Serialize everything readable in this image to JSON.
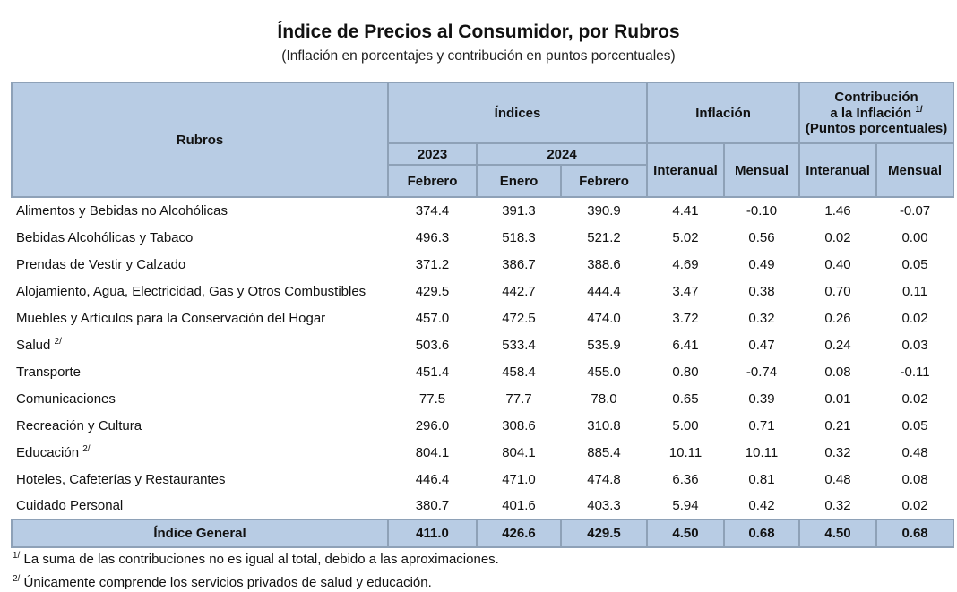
{
  "title": "Índice de Precios al Consumidor, por Rubros",
  "subtitle": "(Inflación en porcentajes y contribución en puntos porcentuales)",
  "header": {
    "rubros": "Rubros",
    "indices": "Índices",
    "inflacion": "Inflación",
    "contribucion_line1": "Contribución",
    "contribucion_line2": "a la Inflación",
    "contribucion_sup": "1/",
    "contribucion_line3": "(Puntos porcentuales)",
    "year_2023": "2023",
    "year_2024": "2024",
    "febrero_2023": "Febrero",
    "enero_2024": "Enero",
    "febrero_2024": "Febrero",
    "interanual": "Interanual",
    "mensual": "Mensual",
    "contrib_interanual": "Interanual",
    "contrib_mensual": "Mensual"
  },
  "rows": [
    {
      "rubro": "Alimentos y Bebidas no Alcohólicas",
      "sup": "",
      "feb23": "374.4",
      "ene24": "391.3",
      "feb24": "390.9",
      "inf_inter": "4.41",
      "inf_mens": "-0.10",
      "con_inter": "1.46",
      "con_mens": "-0.07"
    },
    {
      "rubro": "Bebidas Alcohólicas y Tabaco",
      "sup": "",
      "feb23": "496.3",
      "ene24": "518.3",
      "feb24": "521.2",
      "inf_inter": "5.02",
      "inf_mens": "0.56",
      "con_inter": "0.02",
      "con_mens": "0.00"
    },
    {
      "rubro": "Prendas de Vestir y Calzado",
      "sup": "",
      "feb23": "371.2",
      "ene24": "386.7",
      "feb24": "388.6",
      "inf_inter": "4.69",
      "inf_mens": "0.49",
      "con_inter": "0.40",
      "con_mens": "0.05"
    },
    {
      "rubro": "Alojamiento, Agua, Electricidad, Gas y Otros Combustibles",
      "sup": "",
      "feb23": "429.5",
      "ene24": "442.7",
      "feb24": "444.4",
      "inf_inter": "3.47",
      "inf_mens": "0.38",
      "con_inter": "0.70",
      "con_mens": "0.11"
    },
    {
      "rubro": "Muebles y Artículos para la Conservación del Hogar",
      "sup": "",
      "feb23": "457.0",
      "ene24": "472.5",
      "feb24": "474.0",
      "inf_inter": "3.72",
      "inf_mens": "0.32",
      "con_inter": "0.26",
      "con_mens": "0.02"
    },
    {
      "rubro": "Salud",
      "sup": "2/",
      "feb23": "503.6",
      "ene24": "533.4",
      "feb24": "535.9",
      "inf_inter": "6.41",
      "inf_mens": "0.47",
      "con_inter": "0.24",
      "con_mens": "0.03"
    },
    {
      "rubro": "Transporte",
      "sup": "",
      "feb23": "451.4",
      "ene24": "458.4",
      "feb24": "455.0",
      "inf_inter": "0.80",
      "inf_mens": "-0.74",
      "con_inter": "0.08",
      "con_mens": "-0.11"
    },
    {
      "rubro": "Comunicaciones",
      "sup": "",
      "feb23": "77.5",
      "ene24": "77.7",
      "feb24": "78.0",
      "inf_inter": "0.65",
      "inf_mens": "0.39",
      "con_inter": "0.01",
      "con_mens": "0.02"
    },
    {
      "rubro": "Recreación y Cultura",
      "sup": "",
      "feb23": "296.0",
      "ene24": "308.6",
      "feb24": "310.8",
      "inf_inter": "5.00",
      "inf_mens": "0.71",
      "con_inter": "0.21",
      "con_mens": "0.05"
    },
    {
      "rubro": "Educación",
      "sup": "2/",
      "feb23": "804.1",
      "ene24": "804.1",
      "feb24": "885.4",
      "inf_inter": "10.11",
      "inf_mens": "10.11",
      "con_inter": "0.32",
      "con_mens": "0.48"
    },
    {
      "rubro": "Hoteles, Cafeterías y Restaurantes",
      "sup": "",
      "feb23": "446.4",
      "ene24": "471.0",
      "feb24": "474.8",
      "inf_inter": "6.36",
      "inf_mens": "0.81",
      "con_inter": "0.48",
      "con_mens": "0.08"
    },
    {
      "rubro": "Cuidado Personal",
      "sup": "",
      "feb23": "380.7",
      "ene24": "401.6",
      "feb24": "403.3",
      "inf_inter": "5.94",
      "inf_mens": "0.42",
      "con_inter": "0.32",
      "con_mens": "0.02"
    }
  ],
  "total": {
    "rubro": "Índice General",
    "feb23": "411.0",
    "ene24": "426.6",
    "feb24": "429.5",
    "inf_inter": "4.50",
    "inf_mens": "0.68",
    "con_inter": "4.50",
    "con_mens": "0.68"
  },
  "notes": [
    {
      "sup": "1/",
      "text": "La suma de las contribuciones no es igual al total, debido a las aproximaciones."
    },
    {
      "sup": "2/",
      "text": "Únicamente comprende los servicios privados de salud y educación."
    }
  ],
  "colors": {
    "header_bg": "#b8cce4",
    "border": "#8ea1b7"
  }
}
